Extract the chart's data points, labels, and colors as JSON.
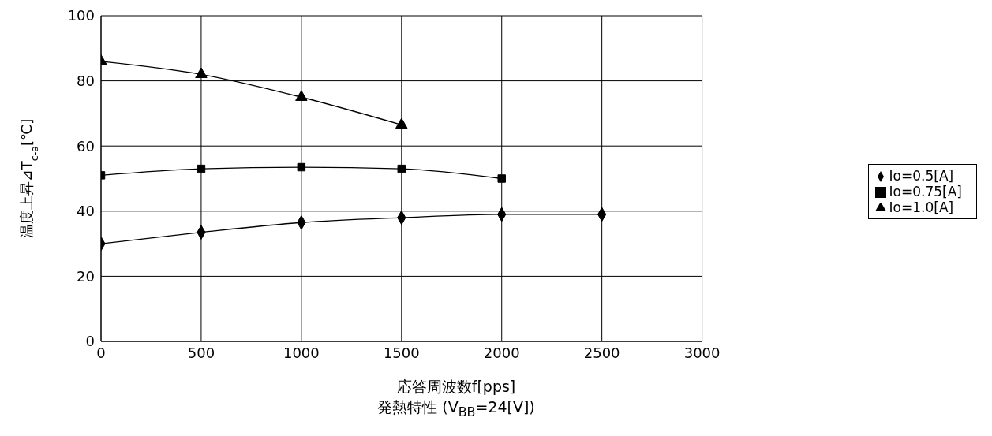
{
  "chart_data": {
    "type": "line",
    "xlabel": "応答周波数f[pps]",
    "ylabel": "温度上昇⊿T$_{c-a}$[℃]",
    "annotations": [
      "発熱特性 (V$_{BB}$=24[V])"
    ],
    "xlim": [
      0,
      3000
    ],
    "xticks": [
      0,
      500,
      1000,
      1500,
      2000,
      2500,
      3000
    ],
    "ylim": [
      0,
      100
    ],
    "yticks": [
      0,
      20,
      40,
      60,
      80,
      100
    ],
    "grid": true,
    "legend": "right",
    "line_style": "solid",
    "series": [
      {
        "name": "Io=0.5[A]",
        "color": "#000000",
        "marker": "diamond",
        "x": [
          0,
          500,
          1000,
          1500,
          2000,
          2500
        ],
        "values": [
          30,
          33.5,
          36.5,
          38,
          39,
          39
        ]
      },
      {
        "name": "Io=0.75[A]",
        "color": "#000000",
        "marker": "square",
        "x": [
          0,
          500,
          1000,
          1500,
          2000
        ],
        "values": [
          51,
          53,
          53.5,
          53,
          50
        ]
      },
      {
        "name": "Io=1.0[A]",
        "color": "#000000",
        "marker": "triangle",
        "x": [
          0,
          500,
          1000,
          1500
        ],
        "values": [
          86,
          82,
          75,
          66.5
        ]
      }
    ]
  }
}
